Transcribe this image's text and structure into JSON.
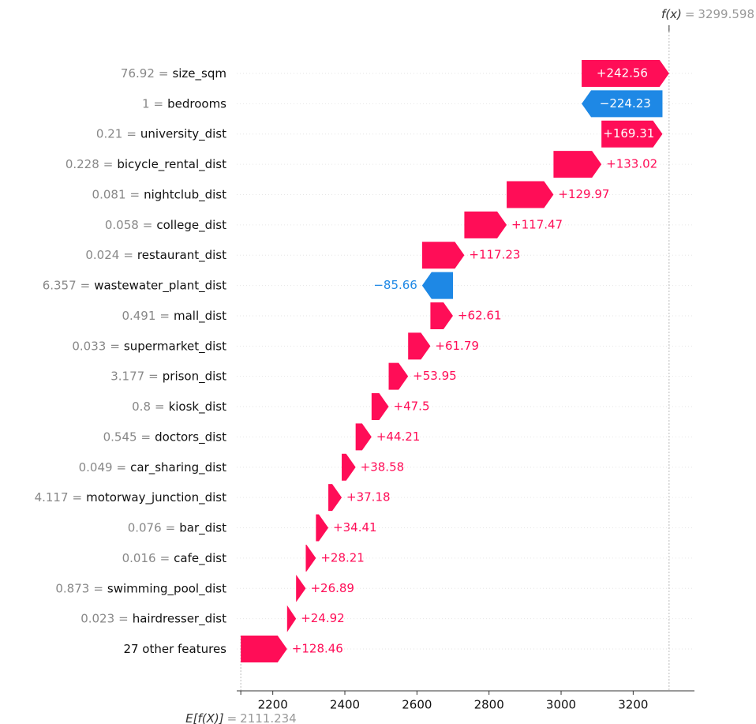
{
  "chart_data": {
    "type": "waterfall",
    "separator": "=",
    "base_label": "E[f(X)]",
    "base_value": 2111.234,
    "fx_label": "f(x)",
    "fx_value": 3299.598,
    "features": [
      "size_sqm",
      "bedrooms",
      "university_dist",
      "bicycle_rental_dist",
      "nightclub_dist",
      "college_dist",
      "restaurant_dist",
      "wastewater_plant_dist",
      "mall_dist",
      "supermarket_dist",
      "prison_dist",
      "kiosk_dist",
      "doctors_dist",
      "car_sharing_dist",
      "motorway_junction_dist",
      "bar_dist",
      "cafe_dist",
      "swimming_pool_dist",
      "hairdresser_dist",
      "27 other features"
    ],
    "feature_values": [
      "76.92",
      "1",
      "0.21",
      "0.228",
      "0.081",
      "0.058",
      "0.024",
      "6.357",
      "0.491",
      "0.033",
      "3.177",
      "0.8",
      "0.545",
      "0.049",
      "4.117",
      "0.076",
      "0.016",
      "0.873",
      "0.023",
      null
    ],
    "values": [
      242.56,
      -224.23,
      169.31,
      133.02,
      129.97,
      117.47,
      117.23,
      -85.66,
      62.61,
      61.79,
      53.95,
      47.5,
      44.21,
      38.58,
      37.18,
      34.41,
      28.21,
      26.89,
      24.92,
      128.46
    ],
    "value_labels": [
      "+242.56",
      "−224.23",
      "+169.31",
      "+133.02",
      "+129.97",
      "+117.47",
      "+117.23",
      "−85.66",
      "+62.61",
      "+61.79",
      "+53.95",
      "+47.5",
      "+44.21",
      "+38.58",
      "+37.18",
      "+34.41",
      "+28.21",
      "+26.89",
      "+24.92",
      "+128.46"
    ],
    "positive_color": "#ff0d57",
    "negative_color": "#1e88e5",
    "xlim": [
      2100,
      3370
    ],
    "xticks": [
      2200,
      2400,
      2600,
      2800,
      3000,
      3200
    ]
  }
}
